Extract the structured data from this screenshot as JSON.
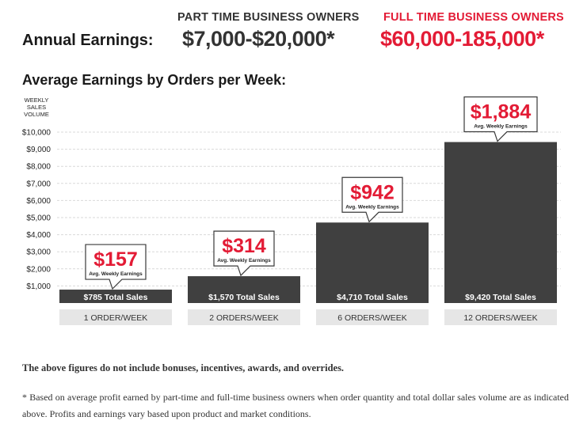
{
  "header": {
    "annual_label": "Annual Earnings:",
    "part_time": {
      "heading": "PART TIME BUSINESS OWNERS",
      "value": "$7,000-$20,000*",
      "color": "#333333"
    },
    "full_time": {
      "heading": "FULL TIME BUSINESS OWNERS",
      "value": "$60,000-185,000*",
      "color": "#e31b35"
    }
  },
  "section_title": "Average Earnings by Orders per Week:",
  "chart_data": {
    "type": "bar",
    "ylabel": "WEEKLY SALES VOLUME",
    "ylim": [
      0,
      10000
    ],
    "yticks": [
      1000,
      2000,
      3000,
      4000,
      5000,
      6000,
      7000,
      8000,
      9000,
      10000
    ],
    "ytick_labels": [
      "$1,000",
      "$2,000",
      "$3,000",
      "$4,000",
      "$5,000",
      "$6,000",
      "$7,000",
      "$8,000",
      "$9,000",
      "$10,000"
    ],
    "grid": true,
    "categories": [
      "1 ORDER/WEEK",
      "2 ORDERS/WEEK",
      "6 ORDERS/WEEK",
      "12 ORDERS/WEEK"
    ],
    "values": [
      785,
      1570,
      4710,
      9420
    ],
    "bar_labels": [
      "$785 Total Sales",
      "$1,570 Total Sales",
      "$4,710 Total Sales",
      "$9,420 Total Sales"
    ],
    "annotations": [
      {
        "value": "$157",
        "caption": "Avg. Weekly Earnings"
      },
      {
        "value": "$314",
        "caption": "Avg. Weekly Earnings"
      },
      {
        "value": "$942",
        "caption": "Avg. Weekly Earnings"
      },
      {
        "value": "$1,884",
        "caption": "Avg. Weekly Earnings"
      }
    ],
    "colors": {
      "bar": "#404040",
      "accent": "#e31b35",
      "category_band": "#e6e6e6",
      "grid": "#d9d9d9"
    }
  },
  "notes": {
    "disclaimer": "The above figures do not include bonuses, incentives, awards, and overrides.",
    "footnote": "* Based on average profit earned by part-time and full-time business owners when order quantity and total dollar sales volume are as indicated above. Profits and earnings vary based upon product and market conditions."
  }
}
